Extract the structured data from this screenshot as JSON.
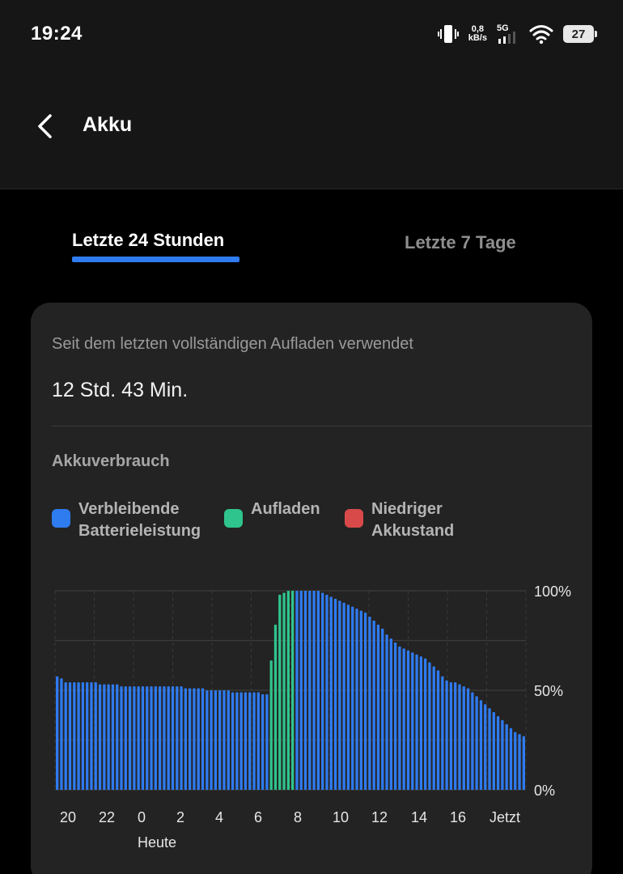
{
  "status_bar": {
    "time": "19:24",
    "speed_value": "0,8",
    "speed_unit": "kB/s",
    "network": "5G",
    "battery_level": "27",
    "icons": [
      "vibrate-icon",
      "network-signal-icon",
      "wifi-icon",
      "battery-icon"
    ]
  },
  "header": {
    "title": "Akku",
    "back_icon": "chevron-left-icon"
  },
  "tabs": [
    {
      "label": "Letzte 24 Stunden",
      "active": true
    },
    {
      "label": "Letzte 7 Tage",
      "active": false
    }
  ],
  "card": {
    "subtitle": "Seit dem letzten vollständigen Aufladen verwendet",
    "value": "12 Std. 43 Min.",
    "section_title": "Akkuverbrauch"
  },
  "legend": [
    {
      "line1": "Verbleibende",
      "line2": "Batterieleistung",
      "color": "#2f7bf0"
    },
    {
      "line1": "Aufladen",
      "line2": "",
      "color": "#2fc48d"
    },
    {
      "line1": "Niedriger",
      "line2": "Akkustand",
      "color": "#d84a4a"
    }
  ],
  "chart_data": {
    "type": "bar",
    "y_ticks": [
      "100%",
      "50%",
      "0%"
    ],
    "ylim": [
      0,
      100
    ],
    "x_tick_labels": [
      "20",
      "22",
      "0",
      "2",
      "4",
      "6",
      "8",
      "10",
      "12",
      "14",
      "16",
      "Jetzt"
    ],
    "x_sub_label": "Heute",
    "grid": true,
    "colors": {
      "remaining": "#2f7bf0",
      "charging": "#2fc48d"
    },
    "series": [
      {
        "key": "remaining",
        "values": [
          57,
          56,
          54,
          54,
          54,
          54,
          54,
          54,
          54,
          54,
          53,
          53,
          53,
          53,
          53,
          52,
          52,
          52,
          52,
          52,
          52,
          52,
          52,
          52,
          52,
          52,
          52,
          52,
          52,
          52,
          51,
          51,
          51,
          51,
          51,
          50,
          50,
          50,
          50,
          50,
          50,
          49,
          49,
          49,
          49,
          49,
          49,
          49,
          48,
          48,
          null,
          null,
          null,
          null,
          null,
          null,
          100,
          100,
          100,
          100,
          100,
          100,
          99,
          98,
          97,
          96,
          95,
          94,
          93,
          92,
          91,
          90,
          89,
          87,
          85,
          83,
          81,
          78,
          76,
          74,
          72,
          71,
          70,
          69,
          68,
          67,
          66,
          64,
          62,
          60,
          57,
          55,
          54,
          54,
          53,
          52,
          51,
          49,
          47,
          45,
          43,
          41,
          39,
          37,
          35,
          33,
          31,
          29,
          28,
          27
        ]
      },
      {
        "key": "charging",
        "values": [
          null,
          null,
          null,
          null,
          null,
          null,
          null,
          null,
          null,
          null,
          null,
          null,
          null,
          null,
          null,
          null,
          null,
          null,
          null,
          null,
          null,
          null,
          null,
          null,
          null,
          null,
          null,
          null,
          null,
          null,
          null,
          null,
          null,
          null,
          null,
          null,
          null,
          null,
          null,
          null,
          null,
          null,
          null,
          null,
          null,
          null,
          null,
          null,
          null,
          null,
          65,
          83,
          98,
          99,
          100,
          100,
          null,
          null,
          null,
          null,
          null,
          null,
          null,
          null,
          null,
          null,
          null,
          null,
          null,
          null,
          null,
          null,
          null,
          null,
          null,
          null,
          null,
          null,
          null,
          null,
          null,
          null,
          null,
          null,
          null,
          null,
          null,
          null,
          null,
          null,
          null,
          null,
          null,
          null,
          null,
          null,
          null,
          null,
          null,
          null,
          null,
          null,
          null,
          null,
          null,
          null,
          null,
          null,
          null,
          null
        ]
      }
    ]
  }
}
